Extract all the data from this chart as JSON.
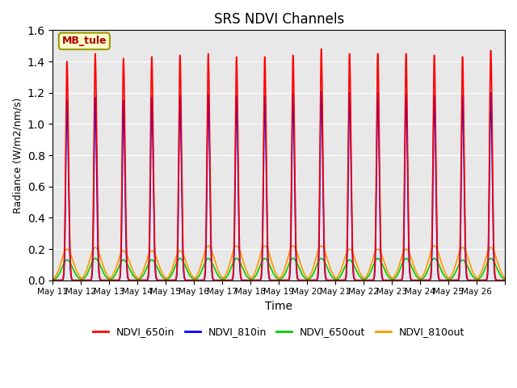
{
  "title": "SRS NDVI Channels",
  "xlabel": "Time",
  "ylabel": "Radiance (W/m2/nm/s)",
  "ylim": [
    0.0,
    1.6
  ],
  "background_color": "#e8e8e8",
  "annotation_text": "MB_tule",
  "annotation_bg": "#ffffcc",
  "annotation_border": "#999900",
  "annotation_color": "#aa0000",
  "series": {
    "NDVI_650in": {
      "color": "#ff0000",
      "linewidth": 1.2
    },
    "NDVI_810in": {
      "color": "#0000ff",
      "linewidth": 1.2
    },
    "NDVI_650out": {
      "color": "#00cc00",
      "linewidth": 1.2
    },
    "NDVI_810out": {
      "color": "#ff9900",
      "linewidth": 1.2
    }
  },
  "tick_labels": [
    "May 11",
    "May 12",
    "May 13",
    "May 14",
    "May 15",
    "May 16",
    "May 17",
    "May 18",
    "May 19",
    "May 20",
    "May 21",
    "May 22",
    "May 23",
    "May 24",
    "May 25",
    "May 26"
  ],
  "n_days": 16,
  "peak_650in": [
    1.4,
    1.45,
    1.42,
    1.43,
    1.44,
    1.45,
    1.43,
    1.43,
    1.44,
    1.48,
    1.45,
    1.45,
    1.45,
    1.44,
    1.43,
    1.47
  ],
  "peak_810in": [
    1.16,
    1.17,
    1.15,
    1.17,
    1.18,
    1.19,
    1.18,
    1.18,
    1.19,
    1.21,
    1.2,
    1.2,
    1.19,
    1.18,
    1.18,
    1.2
  ],
  "peak_650out": [
    0.13,
    0.14,
    0.13,
    0.13,
    0.14,
    0.14,
    0.14,
    0.14,
    0.14,
    0.14,
    0.13,
    0.14,
    0.14,
    0.14,
    0.13,
    0.14
  ],
  "peak_810out": [
    0.2,
    0.21,
    0.19,
    0.19,
    0.19,
    0.22,
    0.22,
    0.22,
    0.22,
    0.22,
    0.2,
    0.2,
    0.2,
    0.22,
    0.21,
    0.21
  ],
  "yticks": [
    0.0,
    0.2,
    0.4,
    0.6,
    0.8,
    1.0,
    1.2,
    1.4,
    1.6
  ],
  "figsize": [
    6.4,
    4.8
  ],
  "dpi": 100
}
